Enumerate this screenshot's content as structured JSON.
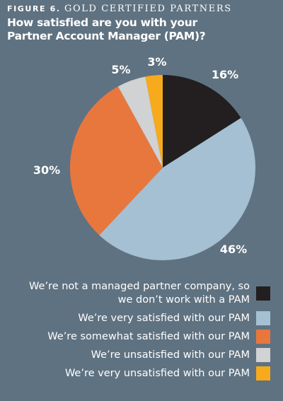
{
  "figure": {
    "number": "FIGURE 6.",
    "title": "GOLD CERTIFIED PARTNERS",
    "question": "How satisfied are you with your Partner Account Manager (PAM)?"
  },
  "chart_data": {
    "type": "pie",
    "title": "How satisfied are you with your Partner Account Manager (PAM)?",
    "slices": [
      {
        "label": "We’re not a managed partner company, so we don’t work with a PAM",
        "value": 16,
        "display": "16%",
        "color": "#231f20"
      },
      {
        "label": "We’re very satisfied with our PAM",
        "value": 46,
        "display": "46%",
        "color": "#a5c0d2"
      },
      {
        "label": "We’re somewhat satisfied with our PAM",
        "value": 30,
        "display": "30%",
        "color": "#e8773e"
      },
      {
        "label": "We’re unsatisfied with our PAM",
        "value": 5,
        "display": "5%",
        "color": "#d0d2d4"
      },
      {
        "label": "We’re very unsatisfied with our PAM",
        "value": 3,
        "display": "3%",
        "color": "#f6aa1c"
      }
    ],
    "legend_position": "bottom-right"
  }
}
